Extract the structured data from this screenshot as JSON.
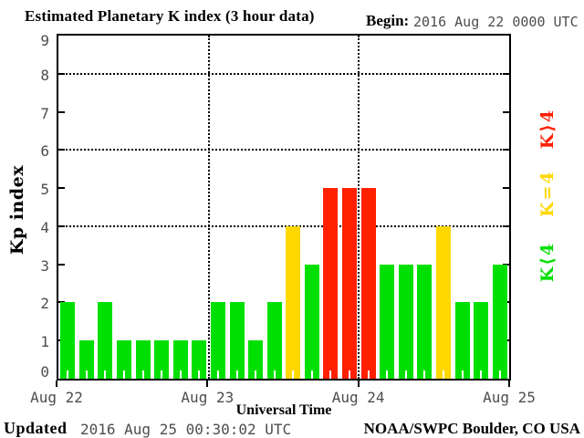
{
  "header": {
    "title": "Estimated Planetary K index (3 hour data)",
    "begin_label": "Begin:",
    "begin_value": "2016 Aug 22 0000 UTC"
  },
  "legend": {
    "items": [
      {
        "label": "K⟩4",
        "key": "gt4",
        "color": "#ff2000"
      },
      {
        "label": "K=4",
        "key": "eq4",
        "color": "#ffd800"
      },
      {
        "label": "K⟨4",
        "key": "lt4",
        "color": "#00e000"
      }
    ]
  },
  "footer": {
    "updated_label": "Updated",
    "updated_value": "2016 Aug 25 00:30:02 UTC",
    "source": "NOAA/SWPC Boulder, CO USA"
  },
  "chart_data": {
    "type": "bar",
    "title": "Estimated Planetary K index (3 hour data)",
    "xlabel": "Universal Time",
    "ylabel": "Kp index",
    "begin": "2016 Aug 22 0000 UTC",
    "interval_hours": 3,
    "ylim": [
      0,
      9
    ],
    "y_ticks": [
      0,
      1,
      2,
      3,
      4,
      5,
      6,
      7,
      8,
      9
    ],
    "gridlines_y": [
      4,
      6,
      8
    ],
    "grid_style": "dotted",
    "x_day_labels": [
      "Aug 22",
      "Aug 23",
      "Aug 24",
      "Aug 25"
    ],
    "values": [
      2,
      1,
      2,
      1,
      1,
      1,
      1,
      1,
      2,
      2,
      1,
      2,
      4,
      3,
      5,
      5,
      5,
      3,
      3,
      3,
      4,
      2,
      2,
      3
    ],
    "colors": {
      "lt4": "#00e000",
      "eq4": "#ffd800",
      "gt4": "#ff2000"
    },
    "legend_position": "right"
  }
}
